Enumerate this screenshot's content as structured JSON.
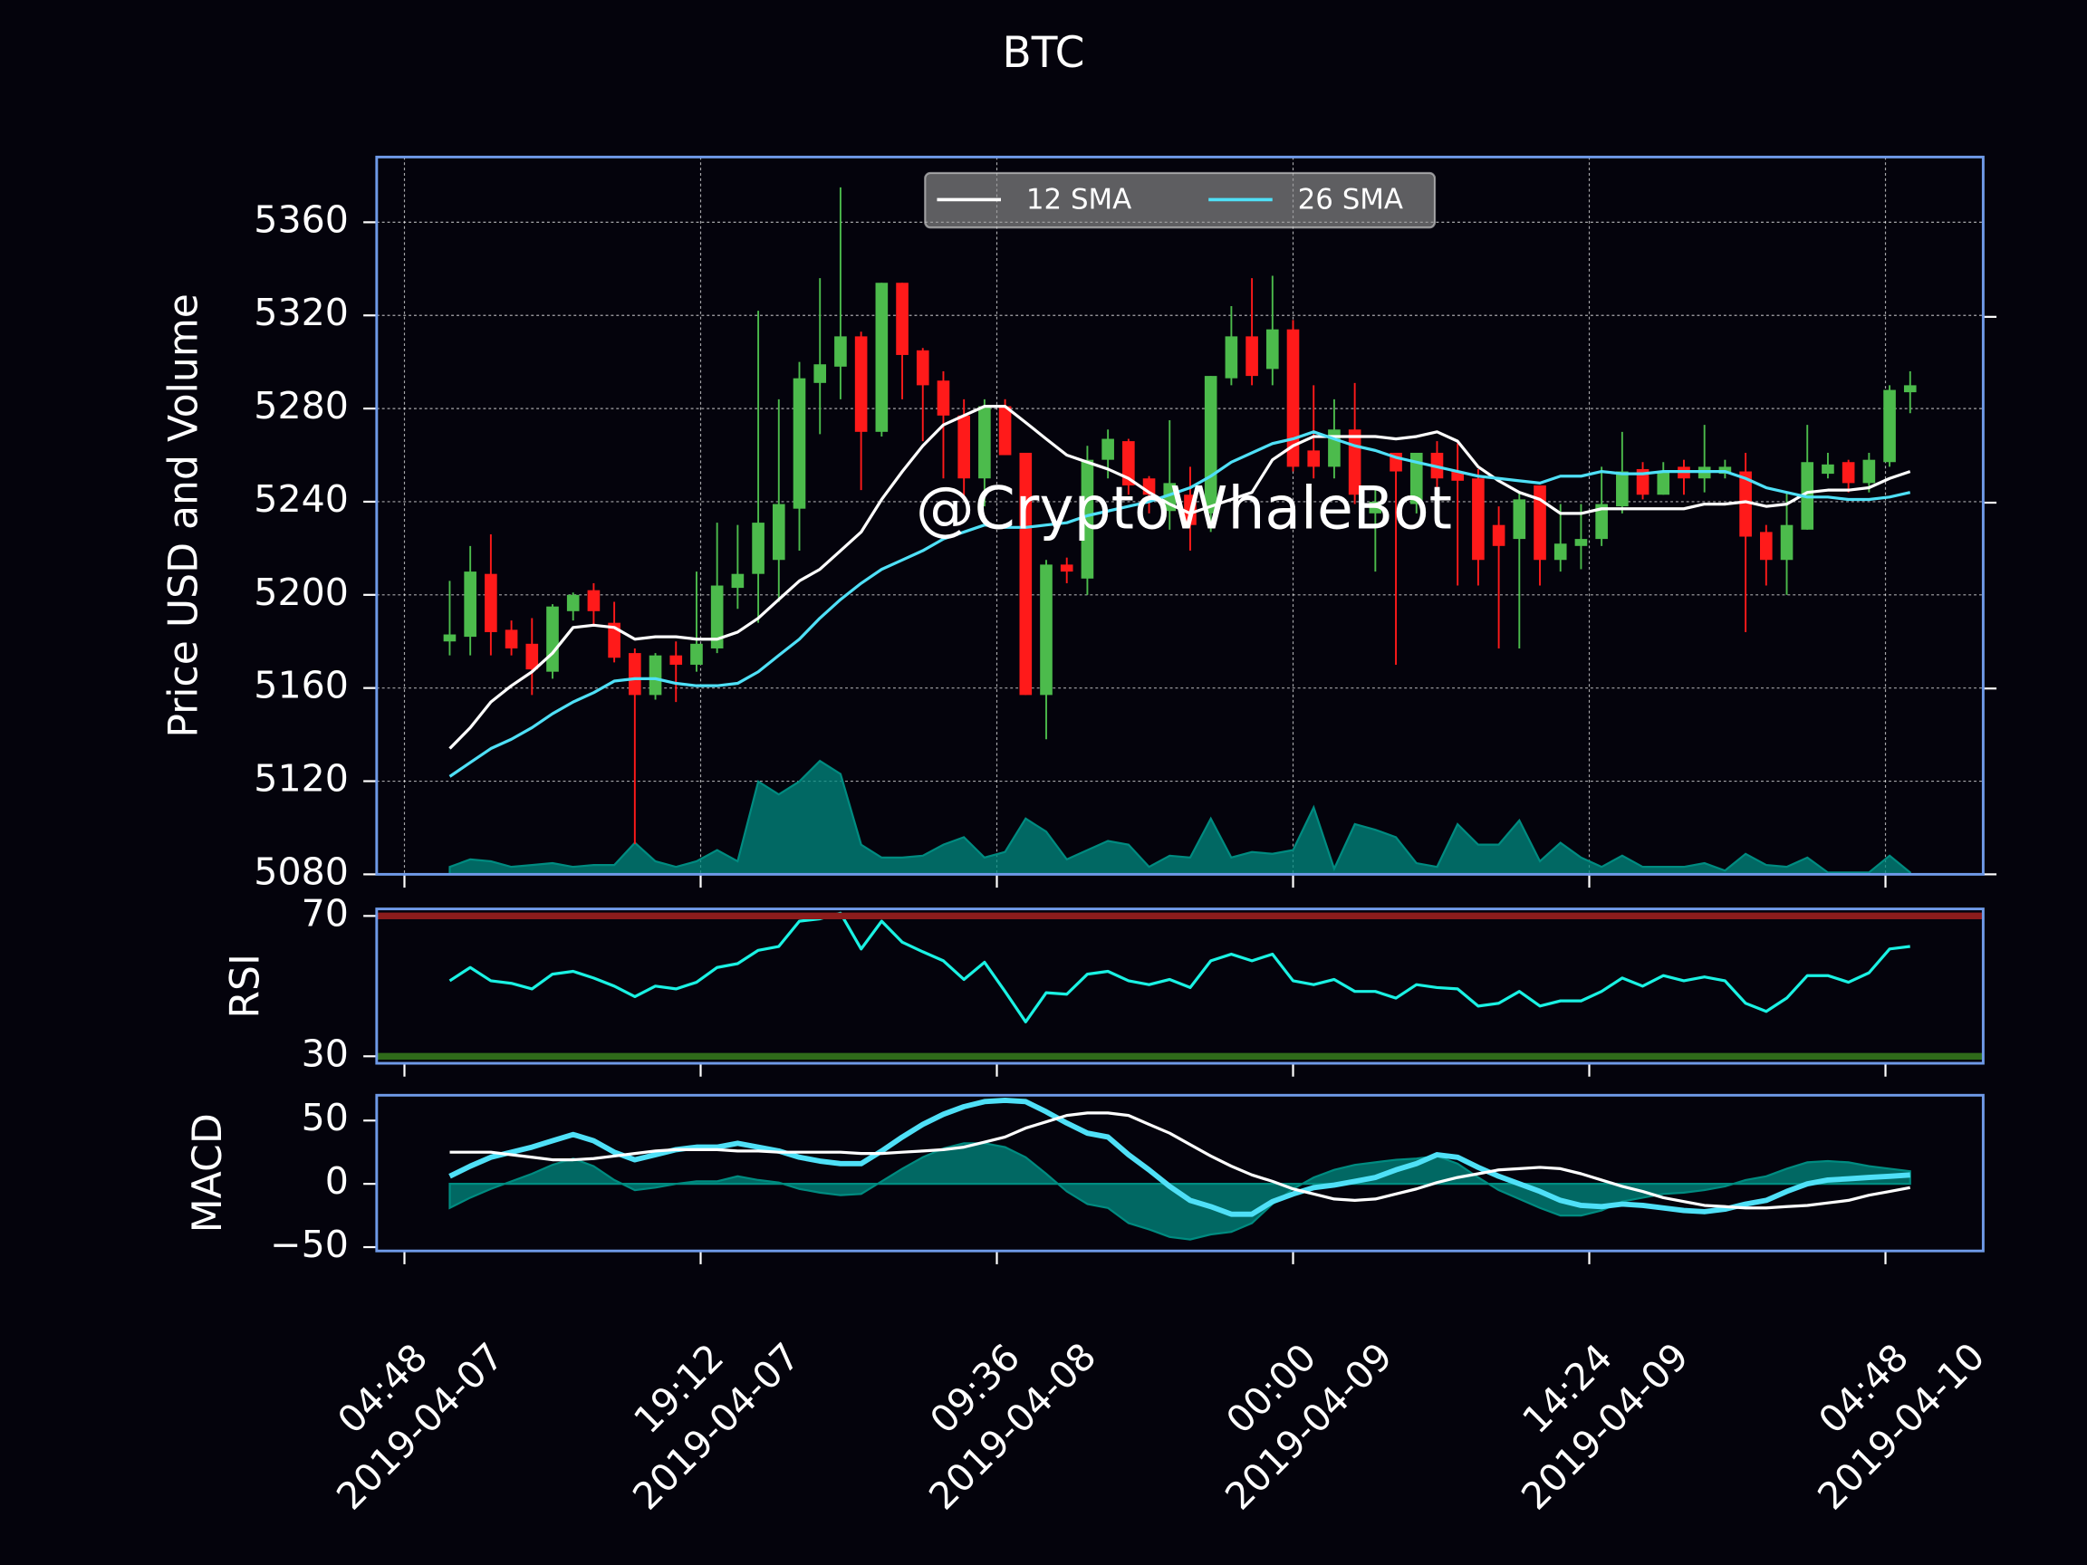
{
  "chart_data": [
    {
      "type": "candlestick",
      "title": "BTC",
      "ylabel": "Price USD and Volume",
      "x": [
        "2019-04-07 07:00",
        "2019-04-07 08:00",
        "2019-04-07 09:00",
        "2019-04-07 10:00",
        "2019-04-07 11:00",
        "2019-04-07 12:00",
        "2019-04-07 13:00",
        "2019-04-07 14:00",
        "2019-04-07 15:00",
        "2019-04-07 16:00",
        "2019-04-07 17:00",
        "2019-04-07 18:00",
        "2019-04-07 19:00",
        "2019-04-07 20:00",
        "2019-04-07 21:00",
        "2019-04-07 22:00",
        "2019-04-07 23:00",
        "2019-04-08 00:00",
        "2019-04-08 01:00",
        "2019-04-08 02:00",
        "2019-04-08 03:00",
        "2019-04-08 04:00",
        "2019-04-08 05:00",
        "2019-04-08 06:00",
        "2019-04-08 07:00",
        "2019-04-08 08:00",
        "2019-04-08 09:00",
        "2019-04-08 10:00",
        "2019-04-08 11:00",
        "2019-04-08 12:00",
        "2019-04-08 13:00",
        "2019-04-08 14:00",
        "2019-04-08 15:00",
        "2019-04-08 16:00",
        "2019-04-08 17:00",
        "2019-04-08 18:00",
        "2019-04-08 19:00",
        "2019-04-08 20:00",
        "2019-04-08 21:00",
        "2019-04-08 22:00",
        "2019-04-08 23:00",
        "2019-04-09 00:00",
        "2019-04-09 01:00",
        "2019-04-09 02:00",
        "2019-04-09 03:00",
        "2019-04-09 04:00",
        "2019-04-09 05:00",
        "2019-04-09 06:00",
        "2019-04-09 07:00",
        "2019-04-09 08:00",
        "2019-04-09 09:00",
        "2019-04-09 10:00",
        "2019-04-09 11:00",
        "2019-04-09 12:00",
        "2019-04-09 13:00",
        "2019-04-09 14:00",
        "2019-04-09 15:00",
        "2019-04-09 16:00",
        "2019-04-09 17:00",
        "2019-04-09 18:00",
        "2019-04-09 19:00",
        "2019-04-09 20:00",
        "2019-04-09 21:00",
        "2019-04-09 22:00",
        "2019-04-09 23:00",
        "2019-04-10 00:00",
        "2019-04-10 01:00",
        "2019-04-10 02:00",
        "2019-04-10 03:00",
        "2019-04-10 04:00",
        "2019-04-10 05:00",
        "2019-04-10 06:00"
      ],
      "open": [
        5180,
        5182,
        5209,
        5185,
        5179,
        5167,
        5193,
        5202,
        5188,
        5175,
        5157,
        5174,
        5170,
        5177,
        5203,
        5209,
        5215,
        5237,
        5291,
        5298,
        5311,
        5270,
        5334,
        5305,
        5292,
        5277,
        5250,
        5281,
        5261,
        5157,
        5213,
        5207,
        5258,
        5266,
        5250,
        5236,
        5243,
        5235,
        5293,
        5311,
        5297,
        5314,
        5262,
        5255,
        5271,
        5235,
        5261,
        5239,
        5261,
        5253,
        5250,
        5230,
        5224,
        5247,
        5215,
        5221,
        5224,
        5238,
        5254,
        5243,
        5255,
        5250,
        5252,
        5253,
        5227,
        5215,
        5228,
        5252,
        5257,
        5248,
        5257,
        5287
      ],
      "high": [
        5206,
        5221,
        5226,
        5189,
        5190,
        5196,
        5201,
        5205,
        5197,
        5177,
        5175,
        5180,
        5210,
        5231,
        5230,
        5322,
        5284,
        5300,
        5336,
        5375,
        5313,
        5334,
        5334,
        5306,
        5296,
        5284,
        5284,
        5284,
        5261,
        5215,
        5216,
        5264,
        5271,
        5267,
        5251,
        5275,
        5255,
        5294,
        5324,
        5336,
        5337,
        5318,
        5290,
        5284,
        5291,
        5245,
        5261,
        5261,
        5266,
        5265,
        5254,
        5238,
        5244,
        5247,
        5239,
        5239,
        5255,
        5270,
        5257,
        5257,
        5258,
        5273,
        5258,
        5261,
        5230,
        5244,
        5273,
        5261,
        5258,
        5261,
        5290,
        5296
      ],
      "low": [
        5174,
        5174,
        5174,
        5174,
        5157,
        5164,
        5189,
        5187,
        5171,
        5093,
        5155,
        5154,
        5167,
        5175,
        5194,
        5188,
        5197,
        5219,
        5269,
        5284,
        5245,
        5268,
        5284,
        5266,
        5250,
        5241,
        5238,
        5260,
        5157,
        5138,
        5205,
        5200,
        5250,
        5243,
        5235,
        5228,
        5219,
        5227,
        5290,
        5290,
        5290,
        5253,
        5250,
        5250,
        5239,
        5210,
        5170,
        5235,
        5230,
        5204,
        5204,
        5177,
        5177,
        5204,
        5210,
        5211,
        5221,
        5235,
        5241,
        5243,
        5243,
        5244,
        5250,
        5184,
        5204,
        5200,
        5228,
        5250,
        5244,
        5244,
        5255,
        5278
      ],
      "close": [
        5183,
        5210,
        5184,
        5177,
        5168,
        5195,
        5200,
        5193,
        5173,
        5157,
        5174,
        5170,
        5179,
        5204,
        5209,
        5231,
        5239,
        5293,
        5299,
        5311,
        5270,
        5334,
        5303,
        5290,
        5277,
        5250,
        5281,
        5260,
        5157,
        5213,
        5210,
        5258,
        5267,
        5247,
        5243,
        5248,
        5230,
        5294,
        5311,
        5294,
        5314,
        5255,
        5255,
        5271,
        5243,
        5240,
        5253,
        5261,
        5250,
        5249,
        5215,
        5221,
        5241,
        5215,
        5222,
        5224,
        5239,
        5253,
        5243,
        5253,
        5250,
        5255,
        5255,
        5225,
        5215,
        5230,
        5257,
        5256,
        5248,
        5258,
        5288,
        5290
      ],
      "up_color": "#4cbb4c",
      "down_color": "#ff1a1a",
      "series": [
        {
          "name": "12 SMA",
          "color": "#ffffff",
          "values": [
            5134,
            5143,
            5154,
            5161,
            5167,
            5175,
            5186,
            5187,
            5186,
            5181,
            5182,
            5182,
            5181,
            5181,
            5184,
            5190,
            5198,
            5206,
            5211,
            5219,
            5227,
            5241,
            5253,
            5264,
            5273,
            5277,
            5281,
            5281,
            5274,
            5267,
            5260,
            5257,
            5254,
            5250,
            5244,
            5239,
            5235,
            5238,
            5241,
            5244,
            5258,
            5264,
            5268,
            5268,
            5268,
            5268,
            5267,
            5268,
            5270,
            5266,
            5255,
            5249,
            5244,
            5241,
            5235,
            5235,
            5237,
            5237,
            5237,
            5237,
            5237,
            5239,
            5239,
            5240,
            5238,
            5239,
            5244,
            5245,
            5245,
            5246,
            5250,
            5253
          ]
        },
        {
          "name": "26 SMA",
          "color": "#4fe0f7",
          "values": [
            5122,
            5128,
            5134,
            5138,
            5143,
            5149,
            5154,
            5158,
            5163,
            5164,
            5164,
            5162,
            5161,
            5161,
            5162,
            5167,
            5174,
            5181,
            5190,
            5198,
            5205,
            5211,
            5215,
            5219,
            5224,
            5227,
            5230,
            5229,
            5229,
            5230,
            5231,
            5234,
            5236,
            5238,
            5240,
            5243,
            5246,
            5251,
            5257,
            5261,
            5265,
            5267,
            5270,
            5267,
            5264,
            5262,
            5259,
            5257,
            5255,
            5253,
            5251,
            5250,
            5249,
            5248,
            5251,
            5251,
            5253,
            5252,
            5252,
            5253,
            5253,
            5253,
            5253,
            5250,
            5246,
            5244,
            5242,
            5242,
            5241,
            5241,
            5242,
            5244
          ]
        },
        {
          "color": "#008b80",
          "axis": "y2",
          "fill": true,
          "values": [
            0.04,
            0.08,
            0.07,
            0.04,
            0.05,
            0.06,
            0.04,
            0.05,
            0.05,
            0.17,
            0.07,
            0.04,
            0.07,
            0.13,
            0.07,
            0.5,
            0.43,
            0.5,
            0.61,
            0.54,
            0.16,
            0.09,
            0.09,
            0.1,
            0.16,
            0.2,
            0.09,
            0.12,
            0.3,
            0.23,
            0.08,
            0.13,
            0.18,
            0.16,
            0.04,
            0.1,
            0.09,
            0.3,
            0.09,
            0.12,
            0.11,
            0.13,
            0.36,
            0.03,
            0.27,
            0.24,
            0.2,
            0.06,
            0.04,
            0.27,
            0.16,
            0.16,
            0.29,
            0.07,
            0.17,
            0.09,
            0.04,
            0.1,
            0.04,
            0.04,
            0.04,
            0.06,
            0.02,
            0.11,
            0.05,
            0.04,
            0.09,
            0.01,
            0.01,
            0.01,
            0.1,
            0.01
          ]
        }
      ],
      "xlim": [
        "2019-04-07 03:27",
        "2019-04-10 09:33"
      ],
      "xticks": [
        {
          "value": "2019-04-07 04:48",
          "label": [
            "04:48",
            "2019-04-07"
          ]
        },
        {
          "value": "2019-04-07 19:12",
          "label": [
            "19:12",
            "2019-04-07"
          ]
        },
        {
          "value": "2019-04-08 09:36",
          "label": [
            "09:36",
            "2019-04-08"
          ]
        },
        {
          "value": "2019-04-09 00:00",
          "label": [
            "00:00",
            "2019-04-09"
          ]
        },
        {
          "value": "2019-04-09 14:24",
          "label": [
            "14:24",
            "2019-04-09"
          ]
        },
        {
          "value": "2019-04-10 04:48",
          "label": [
            "04:48",
            "2019-04-10"
          ]
        }
      ],
      "ylim": [
        5080,
        5388
      ],
      "yticks": [
        5080,
        5120,
        5160,
        5200,
        5240,
        5280,
        5320,
        5360
      ],
      "y2lim": [
        0,
        3.86
      ],
      "y2ticks": [
        0,
        1,
        2,
        3
      ],
      "grid": true,
      "legend": "upper center",
      "annotation": "@CryptoWhaleBot"
    },
    {
      "type": "line",
      "ylabel": "RSI",
      "series": [
        {
          "color": "#1af2e3",
          "values": [
            51.5,
            55.3,
            51.5,
            50.8,
            49.2,
            53.4,
            54.2,
            52.3,
            50,
            47,
            50,
            49.2,
            51.1,
            55.3,
            56.4,
            60.2,
            61.3,
            68.5,
            69.2,
            70.8,
            60.6,
            68.5,
            62.5,
            59.8,
            57.2,
            51.9,
            56.8,
            48.5,
            39.8,
            48.1,
            47.7,
            53.4,
            54.2,
            51.5,
            50.4,
            51.9,
            49.6,
            57.2,
            59.1,
            57.2,
            59.1,
            51.5,
            50.4,
            51.9,
            48.5,
            48.5,
            46.6,
            50.4,
            49.6,
            49.2,
            44.3,
            45.1,
            48.5,
            44.3,
            45.8,
            45.8,
            48.5,
            52.3,
            50,
            53,
            51.5,
            52.6,
            51.5,
            45.1,
            42.8,
            46.6,
            53,
            53,
            51.1,
            53.8,
            60.6,
            61.3
          ]
        }
      ],
      "ylim": [
        28,
        72
      ],
      "yticks": [
        30,
        70
      ],
      "hlines": [
        {
          "value": 70,
          "color": "#8b1c1c"
        },
        {
          "value": 30,
          "color": "#2f6b1a"
        }
      ]
    },
    {
      "type": "line",
      "ylabel": "MACD",
      "series": [
        {
          "color": "#008b80",
          "fill": true,
          "values": [
            -19,
            -11,
            -4,
            2,
            8,
            15,
            20,
            14,
            3,
            -5,
            -3,
            0,
            2,
            2,
            6,
            3,
            1,
            -4,
            -7,
            -9,
            -8,
            2,
            12,
            21,
            28,
            32,
            32,
            29,
            21,
            8,
            -6,
            -16,
            -19,
            -31,
            -36,
            -42,
            -44,
            -40,
            -38,
            -31,
            -16,
            -4,
            5,
            11,
            15,
            17,
            19,
            20,
            22,
            16,
            5,
            -5,
            -12,
            -19,
            -25,
            -25,
            -21,
            -14,
            -11,
            -8,
            -7,
            -5,
            -2,
            3,
            6,
            12,
            17,
            18,
            17,
            14,
            12,
            10
          ]
        },
        {
          "color": "#4fe0f7",
          "width": 4,
          "values": [
            6,
            14,
            21,
            25,
            29,
            34,
            39,
            34,
            25,
            19,
            23,
            27,
            29,
            29,
            32,
            29,
            26,
            21,
            18,
            16,
            16,
            26,
            37,
            47,
            55,
            61,
            65,
            66,
            65,
            57,
            48,
            40,
            37,
            23,
            11,
            -2,
            -13,
            -18,
            -24,
            -24,
            -14,
            -8,
            -3,
            -1,
            2,
            5,
            11,
            16,
            23,
            21,
            13,
            6,
            0,
            -6,
            -13,
            -17,
            -18,
            -16,
            -17,
            -19,
            -21,
            -22,
            -20,
            -16,
            -13,
            -6,
            0,
            3,
            4,
            5,
            6,
            7
          ]
        },
        {
          "color": "#ffffff",
          "values": [
            25,
            25,
            25,
            23,
            21,
            19,
            19,
            20,
            22,
            24,
            26,
            27,
            27,
            27,
            26,
            26,
            25,
            25,
            25,
            25,
            24,
            24,
            25,
            26,
            27,
            29,
            33,
            37,
            44,
            49,
            54,
            56,
            56,
            54,
            47,
            40,
            31,
            22,
            14,
            7,
            2,
            -4,
            -8,
            -12,
            -13,
            -12,
            -8,
            -4,
            1,
            5,
            8,
            11,
            12,
            13,
            12,
            8,
            3,
            -2,
            -6,
            -11,
            -14,
            -17,
            -18,
            -19,
            -19,
            -18,
            -17,
            -15,
            -13,
            -9,
            -6,
            -3
          ]
        }
      ],
      "ylim": [
        -53,
        70
      ],
      "yticks": [
        50,
        0,
        {
          "value": -50,
          "label": "−50"
        }
      ]
    }
  ]
}
